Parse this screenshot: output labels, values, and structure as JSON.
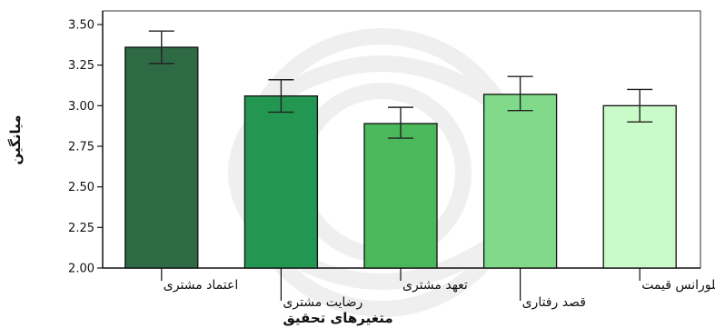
{
  "chart_data": {
    "type": "bar",
    "xlabel": "متغیرهای تحقیق",
    "ylabel": "میانگین",
    "ylim": [
      2.0,
      3.5
    ],
    "yticks": [
      "2.00",
      "2.25",
      "2.50",
      "2.75",
      "3.00",
      "3.25",
      "3.50"
    ],
    "grid": false,
    "error_bars": true,
    "categories": [
      "اعتماد مشتری",
      "رضایت مشتری",
      "تعهد مشتری",
      "قصد رفتاری",
      "تلورانس قیمت"
    ],
    "values": [
      3.36,
      3.06,
      2.89,
      3.07,
      3.0
    ],
    "error_low": [
      3.26,
      2.96,
      2.8,
      2.97,
      2.9
    ],
    "error_high": [
      3.46,
      3.16,
      2.99,
      3.18,
      3.1
    ],
    "colors": [
      "#2e6b45",
      "#239652",
      "#4cb85c",
      "#80da8a",
      "#c9fbc8"
    ]
  }
}
